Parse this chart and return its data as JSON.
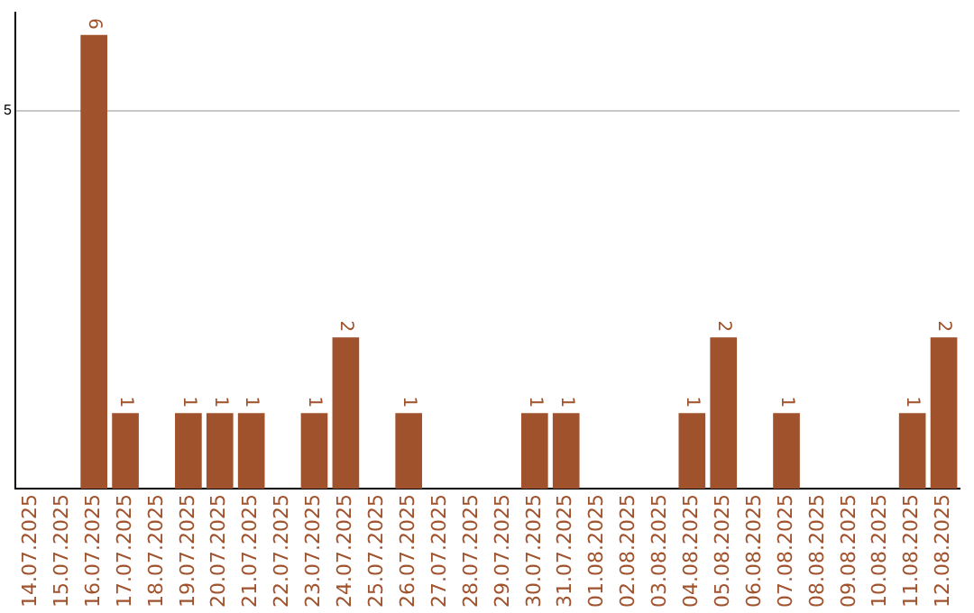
{
  "chart_data": {
    "type": "bar",
    "categories": [
      "14.07.2025",
      "15.07.2025",
      "16.07.2025",
      "17.07.2025",
      "18.07.2025",
      "19.07.2025",
      "20.07.2025",
      "21.07.2025",
      "22.07.2025",
      "23.07.2025",
      "24.07.2025",
      "25.07.2025",
      "26.07.2025",
      "27.07.2025",
      "28.07.2025",
      "29.07.2025",
      "30.07.2025",
      "31.07.2025",
      "01.08.2025",
      "02.08.2025",
      "03.08.2025",
      "04.08.2025",
      "05.08.2025",
      "06.08.2025",
      "07.08.2025",
      "08.08.2025",
      "09.08.2025",
      "10.08.2025",
      "11.08.2025",
      "12.08.2025"
    ],
    "values": [
      0,
      0,
      6,
      1,
      0,
      1,
      1,
      1,
      0,
      1,
      2,
      0,
      1,
      0,
      0,
      0,
      1,
      1,
      0,
      0,
      0,
      1,
      2,
      0,
      1,
      0,
      0,
      0,
      1,
      2
    ],
    "value_labels": [
      null,
      null,
      "6",
      "1",
      null,
      "1",
      "1",
      "1",
      null,
      "1",
      "2",
      null,
      "1",
      null,
      null,
      null,
      "1",
      "1",
      null,
      null,
      null,
      "1",
      "2",
      null,
      "1",
      null,
      null,
      null,
      "1",
      "2"
    ],
    "color": "#a0522d",
    "ylim": [
      0,
      6.3
    ],
    "yticks": [
      5
    ],
    "grid": "y",
    "legend": false
  }
}
